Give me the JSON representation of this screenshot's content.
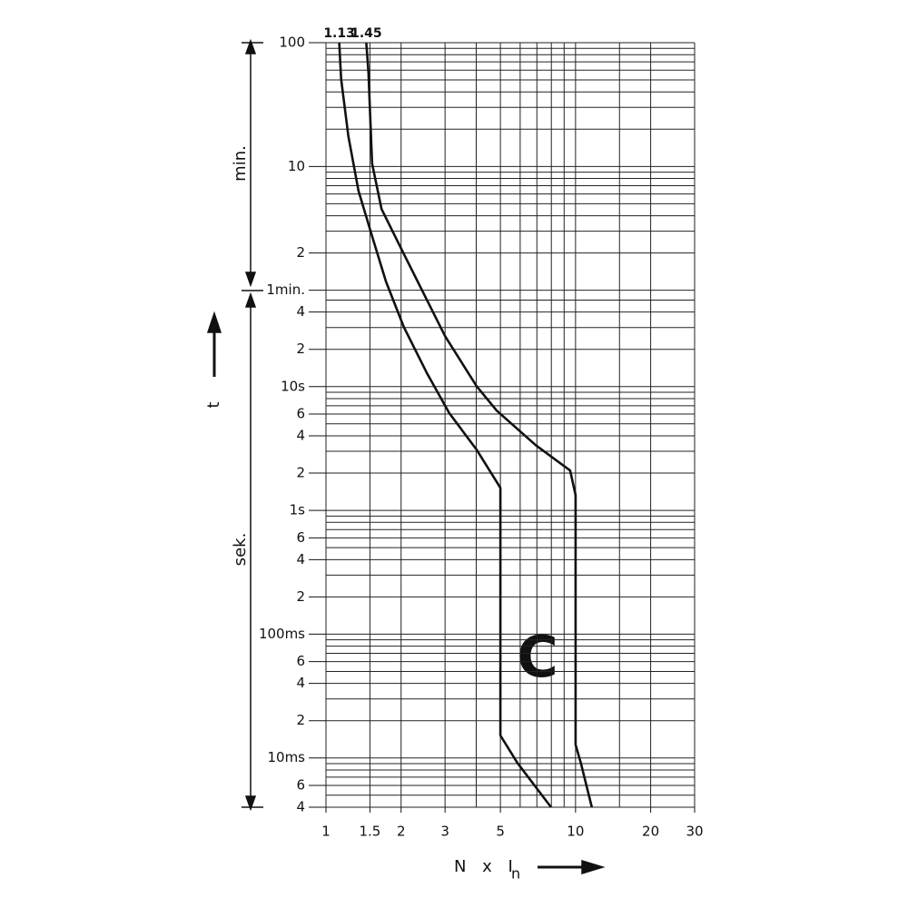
{
  "chart_data": {
    "type": "line",
    "log_x": true,
    "log_y": true,
    "xlim": [
      1,
      30
    ],
    "ylim": [
      0.004,
      6000
    ],
    "xticks": [
      1,
      1.5,
      2,
      3,
      5,
      10,
      20,
      30
    ],
    "yticks": [
      {
        "value": 6000,
        "label": "100"
      },
      {
        "value": 600,
        "label": "10"
      },
      {
        "value": 120,
        "label": "2"
      },
      {
        "value": 60,
        "label": "1min."
      },
      {
        "value": 40,
        "label": "4"
      },
      {
        "value": 20,
        "label": "2"
      },
      {
        "value": 10,
        "label": "10s"
      },
      6,
      4,
      2,
      {
        "value": 1,
        "label": "1s"
      },
      {
        "value": 0.6,
        "label": "6"
      },
      {
        "value": 0.4,
        "label": "4"
      },
      {
        "value": 0.2,
        "label": "2"
      },
      {
        "value": 0.1,
        "label": "100ms"
      },
      {
        "value": 0.06,
        "label": "6"
      },
      {
        "value": 0.04,
        "label": "4"
      },
      {
        "value": 0.02,
        "label": "2"
      },
      {
        "value": 0.01,
        "label": "10ms"
      },
      {
        "value": 0.006,
        "label": "6"
      },
      {
        "value": 0.004,
        "label": "4"
      }
    ],
    "xgrid": [
      1,
      1.5,
      2,
      3,
      4,
      5,
      6,
      7,
      8,
      9,
      10,
      15,
      20,
      30
    ],
    "ygrid": [
      0.004,
      0.005,
      0.006,
      0.007,
      0.008,
      0.009,
      0.01,
      0.02,
      0.03,
      0.04,
      0.05,
      0.06,
      0.07,
      0.08,
      0.09,
      0.1,
      0.2,
      0.3,
      0.4,
      0.5,
      0.6,
      0.7,
      0.8,
      0.9,
      1,
      2,
      3,
      4,
      5,
      6,
      7,
      8,
      9,
      10,
      20,
      30,
      40,
      50,
      60,
      120,
      180,
      240,
      300,
      360,
      420,
      480,
      540,
      600,
      1200,
      1800,
      2400,
      3000,
      3600,
      4200,
      4800,
      5400,
      6000
    ],
    "grid": true,
    "ylabel": "t",
    "ylabel_minutes": "min.",
    "ylabel_seconds": "sek.",
    "xlabel": "N x I",
    "xlabel_sub": "n",
    "annotation": "C",
    "series": [
      {
        "name": "1.13",
        "color": "#111111",
        "x": [
          1.13,
          1.15,
          1.23,
          1.35,
          1.53,
          1.74,
          2.05,
          2.53,
          3.12,
          4.01,
          5,
          5,
          5.85,
          7.98
        ],
        "values": [
          6000,
          3050,
          1050,
          382,
          164,
          70.5,
          30.3,
          13,
          6.1,
          3.1,
          1.52,
          0.0152,
          0.0091,
          0.004
        ]
      },
      {
        "name": "1.45",
        "color": "#111111",
        "x": [
          1.45,
          1.48,
          1.53,
          1.67,
          1.97,
          2.43,
          3,
          4.01,
          4.83,
          6.92,
          9.51,
          10,
          10,
          10.5,
          11.62
        ],
        "values": [
          6000,
          3436,
          634,
          272,
          139,
          59.6,
          25.6,
          10.1,
          6.4,
          3.37,
          2.1,
          1.33,
          0.0128,
          0.0091,
          0.004
        ]
      }
    ]
  }
}
